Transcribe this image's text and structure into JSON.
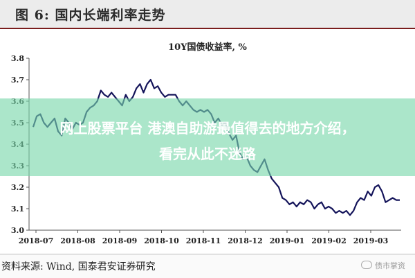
{
  "header": {
    "title": "图 6:  国内长端利率走势"
  },
  "chart_data": {
    "type": "line",
    "title": "10Y国债收益率,  %",
    "xlabel": "",
    "ylabel": "",
    "ylim": [
      3.0,
      3.8
    ],
    "y_ticks": [
      "3.0",
      "3.1",
      "3.2",
      "3.3",
      "3.4",
      "3.5",
      "3.6",
      "3.7",
      "3.8"
    ],
    "x_ticks": [
      "2018-07",
      "2018-08",
      "2018-09",
      "2018-10",
      "2018-11",
      "2018-12",
      "2019-01",
      "2019-02",
      "2019-03"
    ],
    "grid": false,
    "color": "#14145a",
    "series": [
      {
        "values": [
          3.48,
          3.53,
          3.54,
          3.5,
          3.48,
          3.5,
          3.52,
          3.46,
          3.44,
          3.52,
          3.5,
          3.47,
          3.5,
          3.49,
          3.5,
          3.55,
          3.57,
          3.58,
          3.6,
          3.65,
          3.63,
          3.62,
          3.64,
          3.62,
          3.6,
          3.58,
          3.63,
          3.6,
          3.62,
          3.66,
          3.68,
          3.64,
          3.68,
          3.7,
          3.66,
          3.67,
          3.64,
          3.62,
          3.63,
          3.63,
          3.63,
          3.6,
          3.58,
          3.6,
          3.58,
          3.56,
          3.55,
          3.56,
          3.55,
          3.56,
          3.54,
          3.5,
          3.52,
          3.49,
          3.5,
          3.45,
          3.42,
          3.44,
          3.36,
          3.33,
          3.34,
          3.3,
          3.28,
          3.27,
          3.3,
          3.33,
          3.28,
          3.24,
          3.22,
          3.2,
          3.15,
          3.14,
          3.12,
          3.13,
          3.11,
          3.13,
          3.12,
          3.14,
          3.13,
          3.1,
          3.12,
          3.13,
          3.1,
          3.11,
          3.1,
          3.08,
          3.09,
          3.08,
          3.09,
          3.07,
          3.09,
          3.13,
          3.15,
          3.14,
          3.18,
          3.16,
          3.2,
          3.21,
          3.18,
          3.13,
          3.14,
          3.15,
          3.14,
          3.14
        ]
      }
    ]
  },
  "overlay": {
    "line1": "网上股票平台 港澳自助游最值得去的地方介绍，",
    "line2": "看完从此不迷路"
  },
  "footer": {
    "source": "资料来源:  Wind,  国泰君安证券研究",
    "watermark": "债市掌资"
  }
}
